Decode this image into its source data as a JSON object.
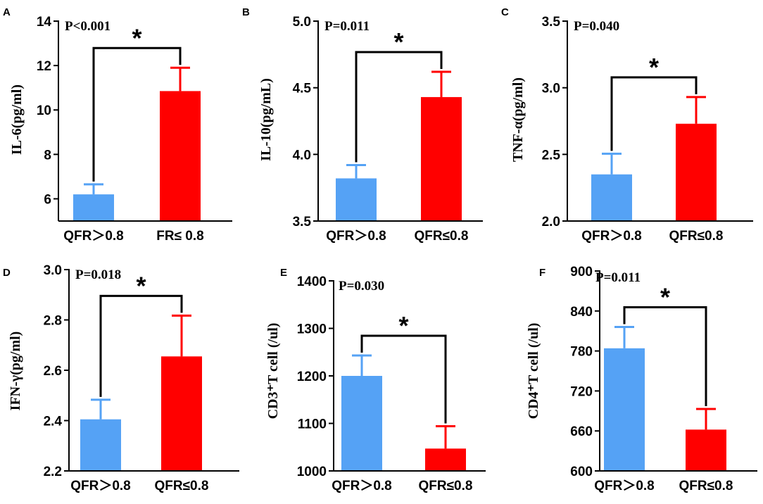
{
  "chart_data": [
    {
      "type": "bar",
      "panel": "A",
      "ylabel": "IL-6(pg/ml)",
      "categories": [
        "QFR＞0.8",
        "FR≤ 0.8"
      ],
      "values": [
        6.2,
        10.85
      ],
      "errors": [
        0.45,
        1.05
      ],
      "colors": [
        "#55a2f5",
        "#ff0000"
      ],
      "ylim": [
        5,
        14
      ],
      "yticks": [
        "6",
        "8",
        "10",
        "12",
        "14"
      ],
      "ytick_values": [
        6,
        8,
        10,
        12,
        14
      ],
      "pvalue": "P<0.001",
      "significance": "*"
    },
    {
      "type": "bar",
      "panel": "B",
      "ylabel": "IL-10(pg/mL)",
      "categories": [
        "QFR＞0.8",
        "QFR≤0.8"
      ],
      "values": [
        3.82,
        4.43
      ],
      "errors": [
        0.1,
        0.19
      ],
      "colors": [
        "#55a2f5",
        "#ff0000"
      ],
      "ylim": [
        3.5,
        5.0
      ],
      "yticks": [
        "3.5",
        "4.0",
        "4.5",
        "5.0"
      ],
      "ytick_values": [
        3.5,
        4.0,
        4.5,
        5.0
      ],
      "pvalue": "P=0.011",
      "significance": "*"
    },
    {
      "type": "bar",
      "panel": "C",
      "ylabel": "TNF-α(pg/ml)",
      "categories": [
        "QFR＞0.8",
        "QFR≤0.8"
      ],
      "values": [
        2.35,
        2.73
      ],
      "errors": [
        0.155,
        0.2
      ],
      "colors": [
        "#55a2f5",
        "#ff0000"
      ],
      "ylim": [
        2.0,
        3.5
      ],
      "yticks": [
        "2.0",
        "2.5",
        "3.0",
        "3.5"
      ],
      "ytick_values": [
        2.0,
        2.5,
        3.0,
        3.5
      ],
      "pvalue": "P=0.040",
      "significance": "*"
    },
    {
      "type": "bar",
      "panel": "D",
      "ylabel": "IFN-γ(pg/ml)",
      "categories": [
        "QFR＞0.8",
        "QFR≤0.8"
      ],
      "values": [
        2.405,
        2.655
      ],
      "errors": [
        0.078,
        0.162
      ],
      "colors": [
        "#55a2f5",
        "#ff0000"
      ],
      "ylim": [
        2.2,
        3.0
      ],
      "yticks": [
        "2.2",
        "2.4",
        "2.6",
        "2.8",
        "3.0"
      ],
      "ytick_values": [
        2.2,
        2.4,
        2.6,
        2.8,
        3.0
      ],
      "pvalue": "P=0.018",
      "significance": "*"
    },
    {
      "type": "bar",
      "panel": "E",
      "ylabel": "CD3⁺T cell (/ul)",
      "categories": [
        "QFR＞0.8",
        "QFR≤0.8"
      ],
      "values": [
        1200,
        1047
      ],
      "errors": [
        43,
        47
      ],
      "colors": [
        "#55a2f5",
        "#ff0000"
      ],
      "ylim": [
        1000,
        1400
      ],
      "yticks": [
        "1000",
        "1100",
        "1200",
        "1300",
        "1400"
      ],
      "ytick_values": [
        1000,
        1100,
        1200,
        1300,
        1400
      ],
      "pvalue": "P=0.030",
      "significance": "*"
    },
    {
      "type": "bar",
      "panel": "F",
      "ylabel": "CD4⁺T cell (/ul)",
      "categories": [
        "QFR＞0.8",
        "QFR≤0.8"
      ],
      "values": [
        784,
        662
      ],
      "errors": [
        32,
        31
      ],
      "colors": [
        "#55a2f5",
        "#ff0000"
      ],
      "ylim": [
        600,
        900
      ],
      "yticks": [
        "600",
        "660",
        "720",
        "780",
        "840",
        "900"
      ],
      "ytick_values": [
        600,
        660,
        720,
        780,
        840,
        900
      ],
      "pvalue": "P=0.011",
      "significance": "*"
    }
  ]
}
